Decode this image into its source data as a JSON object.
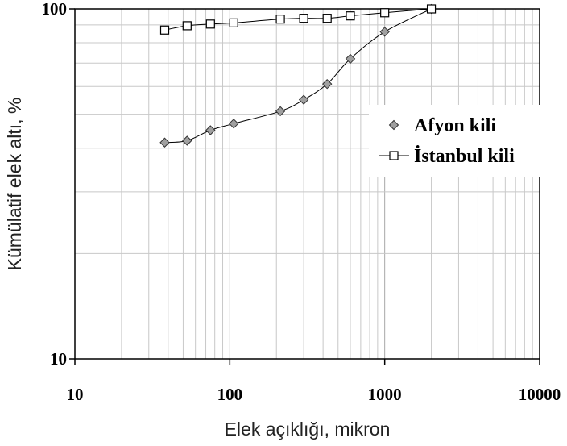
{
  "chart_data": {
    "type": "scatter",
    "title": "",
    "xlabel": "Elek açıklığı, mikron",
    "ylabel": "Kümülatif elek altı, %",
    "xscale": "log",
    "yscale": "log",
    "xlim": [
      10,
      10000
    ],
    "ylim": [
      10,
      100
    ],
    "xticks": [
      "10",
      "100",
      "1000",
      "10000"
    ],
    "yticks": [
      "10",
      "100"
    ],
    "grid": true,
    "legend_position": "right",
    "series": [
      {
        "name": "Afyon kili",
        "marker": "diamond",
        "marker_color": "#a0a0a0",
        "x": [
          38,
          53,
          75,
          106,
          212,
          300,
          425,
          600,
          1000,
          2000
        ],
        "y": [
          41.5,
          42,
          45,
          47,
          51,
          55,
          61,
          72,
          86,
          100
        ]
      },
      {
        "name": "İstanbul kili",
        "marker": "square",
        "marker_color": "#ffffff",
        "x": [
          38,
          53,
          75,
          106,
          212,
          300,
          425,
          600,
          1000,
          2000
        ],
        "y": [
          87,
          89.5,
          90.5,
          91.2,
          93.5,
          94,
          94,
          95.5,
          97.5,
          100
        ]
      }
    ]
  }
}
